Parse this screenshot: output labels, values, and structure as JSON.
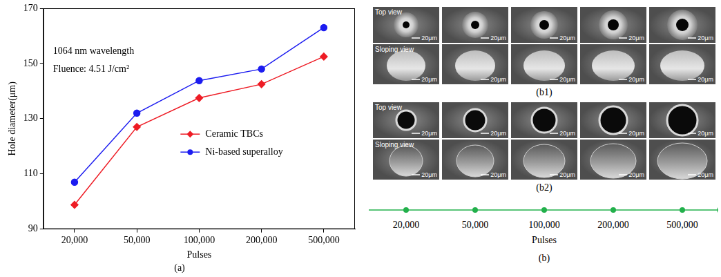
{
  "chart_data": {
    "type": "line",
    "panel_label": "(a)",
    "annotations": [
      "1064 nm wavelength",
      "Fluence: 4.51 J/cm²"
    ],
    "x_label": "Pulses",
    "y_label": "Hole diameter(μm)",
    "categories": [
      "20,000",
      "50,000",
      "100,000",
      "200,000",
      "500,000"
    ],
    "series": [
      {
        "name": "Ceramic TBCs",
        "color": "#ee1c25",
        "marker": "diamond",
        "values": [
          98.8,
          127.0,
          137.5,
          142.5,
          152.5
        ]
      },
      {
        "name": "Ni-based superalloy",
        "color": "#1c1cf0",
        "marker": "circle",
        "values": [
          107.0,
          132.0,
          143.8,
          148.0,
          163.0
        ]
      }
    ],
    "ylim": [
      90,
      170
    ],
    "yticks": [
      90,
      110,
      130,
      150,
      170
    ],
    "grid": false,
    "legend": "right"
  },
  "image_panel": {
    "panel_label": "(b)",
    "subpanels": [
      {
        "label": "(b1)"
      },
      {
        "label": "(b2)"
      }
    ],
    "row_labels": [
      "Top view",
      "Sloping view"
    ],
    "scale_bar": "20μm",
    "categories": [
      "20,000",
      "50,000",
      "100,000",
      "200,000",
      "500,000"
    ],
    "x_label": "Pulses"
  }
}
